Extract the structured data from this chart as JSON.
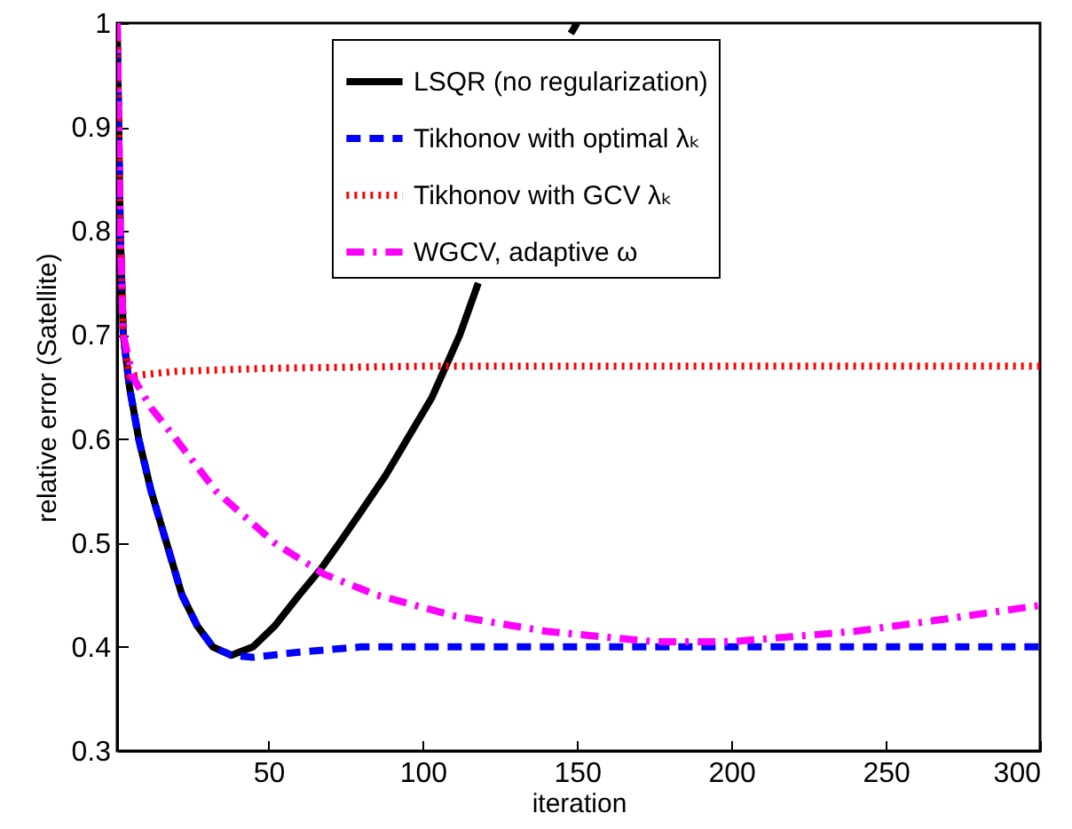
{
  "chart_data": {
    "type": "line",
    "xlabel": "iteration",
    "ylabel": "relative error (Satellite)",
    "xlim": [
      1,
      300
    ],
    "ylim": [
      0.3,
      1
    ],
    "xticks": [
      50,
      100,
      150,
      200,
      250,
      300
    ],
    "yticks": [
      0.3,
      0.4,
      0.5,
      0.6,
      0.7,
      0.8,
      0.9,
      1
    ],
    "grid": false,
    "legend": "top",
    "marker": "none",
    "series": [
      {
        "name": "LSQR (no regularization)",
        "color": "#000000",
        "line_style": "solid",
        "x": [
          1,
          2,
          3,
          5,
          8,
          12,
          17,
          22,
          27,
          32,
          38,
          45,
          52,
          60,
          67,
          73,
          80,
          88,
          95,
          103,
          112,
          118,
          125,
          131,
          137,
          144,
          148,
          150
        ],
        "values": [
          1,
          0.8,
          0.7,
          0.65,
          0.6,
          0.55,
          0.5,
          0.45,
          0.42,
          0.4,
          0.392,
          0.4,
          0.42,
          0.45,
          0.475,
          0.5,
          0.53,
          0.565,
          0.6,
          0.64,
          0.7,
          0.75,
          null,
          null,
          null,
          null,
          0.99,
          1
        ]
      },
      {
        "name": "Tikhonov with optimal λₖ",
        "color": "#0000ff",
        "line_style": "dashed",
        "x": [
          1,
          2,
          3,
          5,
          8,
          12,
          17,
          22,
          27,
          32,
          38,
          45,
          60,
          80,
          100,
          150,
          200,
          250,
          300
        ],
        "values": [
          1,
          0.8,
          0.7,
          0.65,
          0.6,
          0.55,
          0.5,
          0.45,
          0.42,
          0.4,
          0.392,
          0.39,
          0.395,
          0.4,
          0.4,
          0.4,
          0.4,
          0.4,
          0.4
        ]
      },
      {
        "name": "Tikhonov with GCV λₖ",
        "color": "#ff0000",
        "line_style": "dotted",
        "x": [
          1,
          2,
          3,
          5,
          10,
          20,
          50,
          100,
          150,
          200,
          250,
          300
        ],
        "values": [
          1,
          0.8,
          0.7,
          0.66,
          0.662,
          0.665,
          0.668,
          0.67,
          0.67,
          0.67,
          0.67,
          0.67
        ]
      },
      {
        "name": "WGCV, adaptive    ω",
        "color": "#ff00ff",
        "line_style": "dashdot",
        "x": [
          1,
          2,
          3,
          6,
          12,
          20,
          33,
          52,
          68,
          85,
          110,
          140,
          175,
          200,
          220,
          240,
          265,
          300
        ],
        "values": [
          1,
          0.8,
          0.7,
          0.66,
          0.63,
          0.6,
          0.55,
          0.5,
          0.47,
          0.45,
          0.43,
          0.415,
          0.405,
          0.405,
          0.41,
          0.415,
          0.425,
          0.44
        ]
      }
    ]
  }
}
